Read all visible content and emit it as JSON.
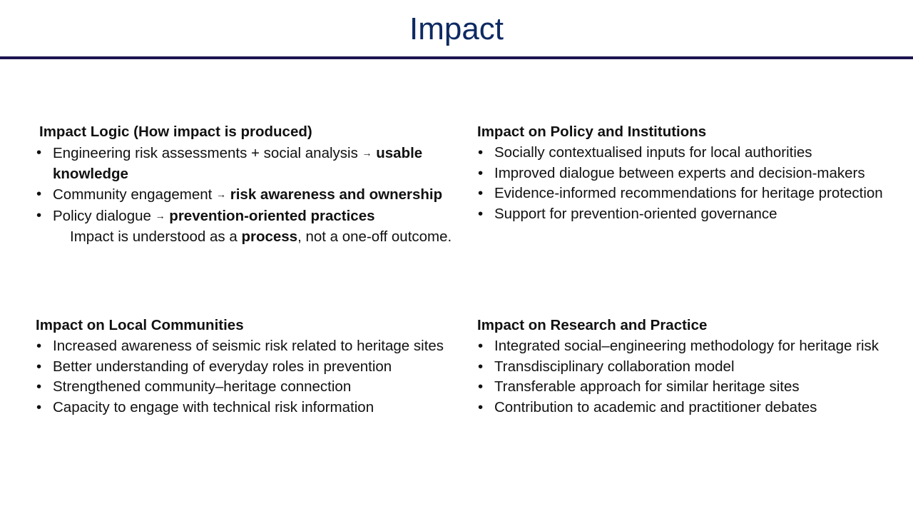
{
  "slide": {
    "title": "Impact"
  },
  "logic": {
    "heading": "Impact Logic (How impact is produced)",
    "items": [
      {
        "text": "Engineering risk assessments + social analysis ",
        "arrow": "→",
        "bold": "usable knowledge"
      },
      {
        "text": "Community engagement ",
        "arrow": "→",
        "bold": "risk awareness and ownership"
      },
      {
        "text": "Policy dialogue ",
        "arrow": "→",
        "bold": "prevention-oriented practices"
      }
    ],
    "note": {
      "before": "Impact is understood as a ",
      "bold": "process",
      "after": ", not a one-off outcome."
    }
  },
  "policy": {
    "heading": "Impact on Policy and Institutions",
    "items": [
      "Socially contextualised inputs for local authorities",
      "Improved dialogue between experts and decision-makers",
      "Evidence-informed recommendations for heritage protection",
      "Support for prevention-oriented governance"
    ]
  },
  "communities": {
    "heading": "Impact on Local Communities",
    "items": [
      "Increased awareness of seismic risk related to heritage sites",
      "Better understanding of everyday roles in prevention",
      "Strengthened community–heritage connection",
      "Capacity to engage with technical risk information"
    ]
  },
  "research": {
    "heading": "Impact on Research and Practice",
    "items": [
      "Integrated social–engineering methodology for heritage risk",
      "Transdisciplinary collaboration model",
      "Transferable approach for similar heritage sites",
      "Contribution to academic and practitioner debates"
    ]
  }
}
